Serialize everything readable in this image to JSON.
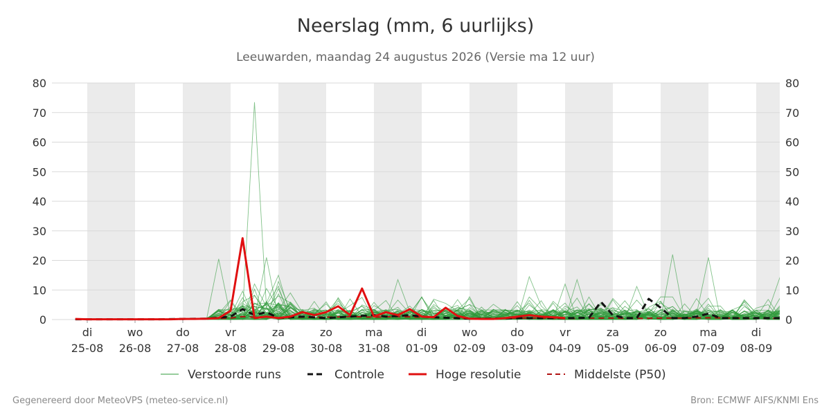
{
  "header": {
    "title": "Neerslag (mm, 6 uurlijks)",
    "subtitle": "Leeuwarden, maandag 24 augustus 2026 (Versie ma 12 uur)"
  },
  "footer": {
    "left": "Gegenereerd door MeteoVPS (meteo-service.nl)",
    "right": "Bron: ECMWF AIFS/KNMI Ens"
  },
  "colors": {
    "members": "#2e9a3a",
    "control": "#111111",
    "high_res": "#e01010",
    "median": "#b01010",
    "weekend_band": "#ebebeb",
    "grid": "#d9d9d9"
  },
  "legend": [
    {
      "key": "members",
      "label": "Verstoorde runs"
    },
    {
      "key": "control",
      "label": "Controle"
    },
    {
      "key": "high_res",
      "label": "Hoge resolutie"
    },
    {
      "key": "median",
      "label": "Middelste (P50)"
    }
  ],
  "chart_data": {
    "type": "line",
    "title": "Neerslag (mm, 6 uurlijks)",
    "subtitle": "Leeuwarden, maandag 24 augustus 2026 (Versie ma 12 uur)",
    "ylim": [
      0,
      80
    ],
    "yticks": [
      0,
      10,
      20,
      30,
      40,
      50,
      60,
      70,
      80
    ],
    "xlim": [
      -0.25,
      14.5
    ],
    "x_unit": "days from di 25-08 00:00, 6-hour steps",
    "day_labels": [
      {
        "day": "di",
        "date": "25-08"
      },
      {
        "day": "wo",
        "date": "26-08"
      },
      {
        "day": "do",
        "date": "27-08"
      },
      {
        "day": "vr",
        "date": "28-08"
      },
      {
        "day": "za",
        "date": "29-08"
      },
      {
        "day": "zo",
        "date": "30-08"
      },
      {
        "day": "ma",
        "date": "31-08"
      },
      {
        "day": "di",
        "date": "01-09"
      },
      {
        "day": "wo",
        "date": "02-09"
      },
      {
        "day": "do",
        "date": "03-09"
      },
      {
        "day": "vr",
        "date": "04-09"
      },
      {
        "day": "za",
        "date": "05-09"
      },
      {
        "day": "zo",
        "date": "06-09"
      },
      {
        "day": "ma",
        "date": "07-09"
      },
      {
        "day": "di",
        "date": "08-09"
      }
    ],
    "shaded_day_spans": [
      [
        0,
        1
      ],
      [
        2,
        3
      ],
      [
        4,
        5
      ],
      [
        6,
        7
      ],
      [
        8,
        9
      ],
      [
        10,
        11
      ],
      [
        12,
        13
      ],
      [
        14,
        14.5
      ]
    ],
    "series_high_res": {
      "name": "Hoge resolutie",
      "x": [
        -0.25,
        0,
        0.25,
        0.5,
        0.75,
        1,
        1.25,
        1.5,
        1.75,
        2,
        2.25,
        2.5,
        2.75,
        3,
        3.25,
        3.5,
        3.75,
        4,
        4.25,
        4.5,
        4.75,
        5,
        5.25,
        5.5,
        5.75,
        6,
        6.25,
        6.5,
        6.75,
        7,
        7.25,
        7.5,
        7.75,
        8,
        8.25,
        8.5,
        8.75,
        9,
        9.25,
        9.5,
        9.75,
        10
      ],
      "y": [
        0.2,
        0.1,
        0.1,
        0.1,
        0.1,
        0.1,
        0.1,
        0.1,
        0.1,
        0.2,
        0.2,
        0.3,
        0.5,
        3,
        27.5,
        0.5,
        1.0,
        0.5,
        1.0,
        2.5,
        1.5,
        2.5,
        4.5,
        1.5,
        10.5,
        1.0,
        2.5,
        1.5,
        3.5,
        1.0,
        0.8,
        4.0,
        1.2,
        0.3,
        0.2,
        0.2,
        0.5,
        1.0,
        1.5,
        1.0,
        0.8,
        0.5
      ]
    },
    "series_control": {
      "name": "Controle",
      "x": [
        -0.25,
        0,
        0.5,
        1,
        1.5,
        2,
        2.5,
        3,
        3.25,
        3.5,
        3.75,
        4,
        4.5,
        5,
        5.5,
        6,
        6.25,
        6.5,
        6.75,
        7,
        7.25,
        7.5,
        7.75,
        8,
        8.5,
        9,
        9.5,
        10,
        10.5,
        10.75,
        11,
        11.25,
        11.5,
        11.75,
        12,
        12.25,
        12.5,
        12.75,
        13,
        13.25,
        13.5,
        13.75,
        14,
        14.25,
        14.5
      ],
      "y": [
        0.1,
        0.1,
        0.1,
        0.1,
        0.1,
        0.2,
        0.3,
        1.0,
        3.5,
        1.5,
        2.5,
        0.5,
        1.0,
        0.5,
        1.0,
        1.5,
        1.0,
        1.2,
        1.5,
        1.0,
        0.8,
        0.6,
        0.5,
        0.3,
        0.3,
        0.5,
        0.5,
        0.5,
        0.6,
        6.0,
        1.5,
        0.5,
        0.5,
        7.0,
        4.0,
        0.5,
        0.5,
        1.0,
        2.0,
        0.5,
        0.5,
        0.5,
        0.5,
        0.5,
        0.5
      ]
    },
    "series_median": {
      "name": "Middelste (P50)",
      "x": [
        -0.25,
        0,
        0.5,
        1,
        1.5,
        2,
        2.5,
        3,
        3.25,
        3.5,
        3.75,
        4,
        4.5,
        5,
        5.5,
        6,
        6.5,
        7,
        7.5,
        8,
        8.5,
        9,
        9.5,
        10,
        10.5,
        11,
        11.5,
        12,
        12.5,
        13,
        13.5,
        14,
        14.5
      ],
      "y": [
        0.1,
        0.1,
        0.1,
        0.1,
        0.1,
        0.1,
        0.2,
        0.5,
        1.0,
        0.8,
        1.0,
        0.5,
        0.8,
        0.8,
        1.0,
        0.8,
        1.0,
        0.8,
        0.6,
        0.3,
        0.3,
        0.5,
        0.5,
        0.3,
        0.5,
        0.5,
        0.4,
        0.5,
        0.5,
        0.6,
        0.5,
        0.4,
        0.4
      ]
    },
    "members_count": 50,
    "members_notable_peaks": [
      {
        "x": 3.5,
        "y": 73.5
      },
      {
        "x": 2.75,
        "y": 20.5
      },
      {
        "x": 3.75,
        "y": 21.0
      },
      {
        "x": 4.0,
        "y": 15.0
      },
      {
        "x": 6.5,
        "y": 13.5
      },
      {
        "x": 9.25,
        "y": 14.5
      },
      {
        "x": 10.0,
        "y": 12.0
      },
      {
        "x": 10.25,
        "y": 13.5
      },
      {
        "x": 11.5,
        "y": 11.2
      },
      {
        "x": 12.25,
        "y": 22.0
      },
      {
        "x": 13.0,
        "y": 21.0
      },
      {
        "x": 14.5,
        "y": 14.5
      }
    ]
  }
}
